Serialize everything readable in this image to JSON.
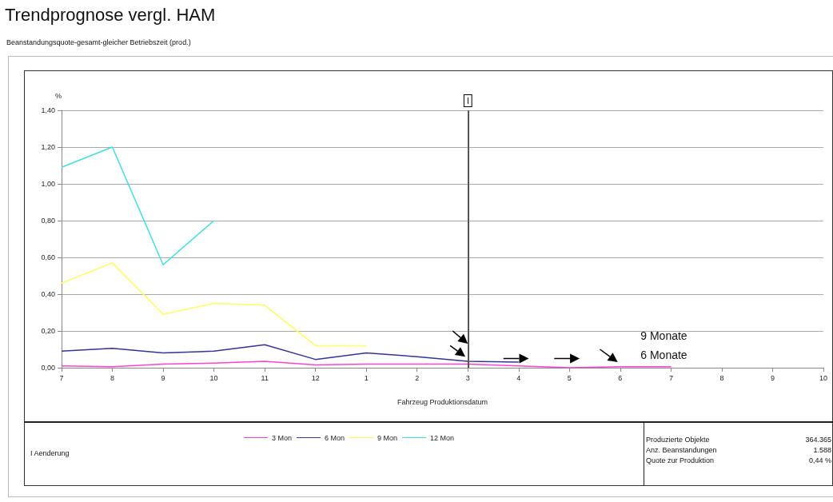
{
  "chart_data": {
    "type": "line",
    "title": "Trendprognose vergl. HAM",
    "subtitle": "Beanstandungsquote-gesamt-gleicher Betriebszeit (prod.)",
    "xlabel": "Fahrzeug Produktionsdatum",
    "ylabel": "%",
    "categories": [
      "7",
      "8",
      "9",
      "10",
      "11",
      "12",
      "1",
      "2",
      "3",
      "4",
      "5",
      "6",
      "7",
      "8",
      "9",
      "10"
    ],
    "series": [
      {
        "name": "3 Mon",
        "color": "#ff44cc",
        "values": [
          0.01,
          0.005,
          0.02,
          0.025,
          0.035,
          0.015,
          0.02,
          0.02,
          0.02,
          0.01,
          0.0,
          0.005,
          0.005,
          null,
          null,
          null
        ]
      },
      {
        "name": "6 Mon",
        "color": "#333399",
        "values": [
          0.09,
          0.105,
          0.08,
          0.09,
          0.125,
          0.045,
          0.08,
          0.06,
          0.035,
          0.03,
          null,
          null,
          null,
          null,
          null,
          null
        ]
      },
      {
        "name": "9 Mon",
        "color": "#ffff66",
        "values": [
          0.46,
          0.57,
          0.29,
          0.35,
          0.34,
          0.12,
          0.12,
          null,
          null,
          null,
          null,
          null,
          null,
          null,
          null,
          null
        ]
      },
      {
        "name": "12 Mon",
        "color": "#44dddd",
        "values": [
          1.09,
          1.2,
          0.56,
          0.8,
          null,
          null,
          null,
          null,
          null,
          null,
          null,
          null,
          null,
          null,
          null,
          null
        ]
      }
    ],
    "ylim": [
      0,
      1.4
    ],
    "yticks": [
      {
        "value": 0,
        "label": "0,00"
      },
      {
        "value": 0.2,
        "label": "0,20"
      },
      {
        "value": 0.4,
        "label": "0,40"
      },
      {
        "value": 0.6,
        "label": "0,60"
      },
      {
        "value": 0.8,
        "label": "0,80"
      },
      {
        "value": 1.0,
        "label": "1,00"
      },
      {
        "value": 1.2,
        "label": "1,20"
      },
      {
        "value": 1.4,
        "label": "1,40"
      }
    ],
    "ref_lines": [
      {
        "axis": "x",
        "value": "3",
        "label": "I",
        "color": "#555555"
      }
    ],
    "annotations": [
      "9 Monate",
      "6 Monate",
      "Aenderung",
      "Produzierte Objekte",
      "364.365",
      "Anz. Beanstandungen",
      "1.588",
      "Quote zur Produktion",
      "0,44 %"
    ],
    "grid": "y",
    "legend": "bottom",
    "marker": "none",
    "line_style": "solid"
  }
}
